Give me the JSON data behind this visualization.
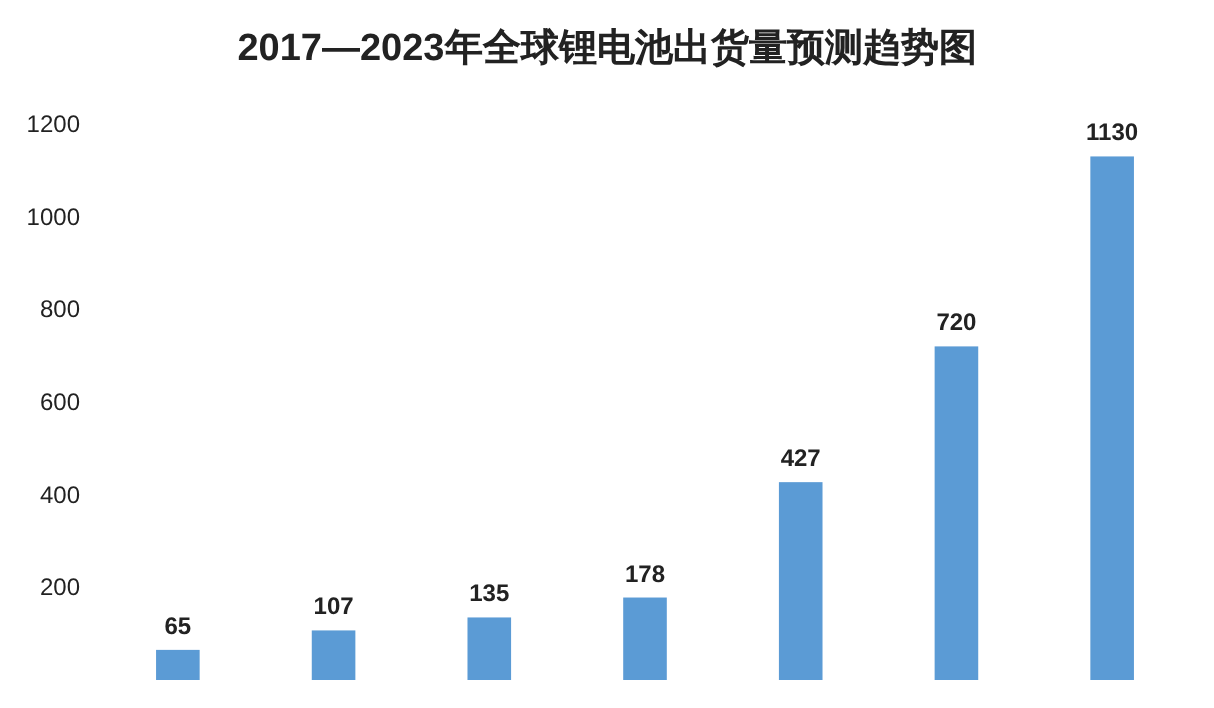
{
  "chart_data": {
    "type": "bar",
    "title": "2017—2023年全球锂电池出货量预测趋势图",
    "categories": [
      null,
      null,
      null,
      null,
      null,
      null,
      null
    ],
    "values": [
      65,
      107,
      135,
      178,
      427,
      720,
      1130
    ],
    "color": "#5b9bd5",
    "data_labels": true,
    "ylim": [
      0,
      1200
    ],
    "yticks": [
      200,
      400,
      600,
      800,
      1000,
      1200
    ],
    "grid": false
  }
}
